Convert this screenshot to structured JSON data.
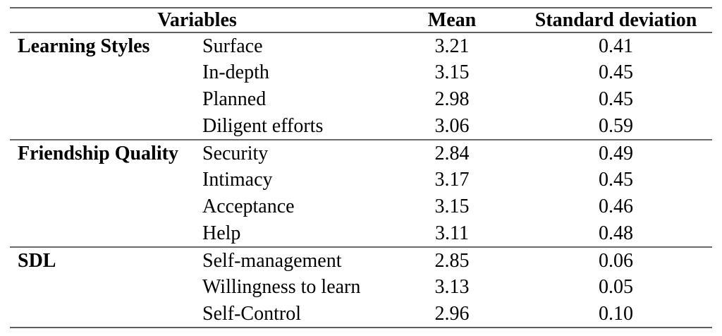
{
  "table": {
    "headers": {
      "variables": "Variables",
      "mean": "Mean",
      "sd": "Standard deviation"
    },
    "groups": [
      {
        "label": "Learning Styles",
        "rows": [
          {
            "variable": "Surface",
            "mean": "3.21",
            "sd": "0.41"
          },
          {
            "variable": "In-depth",
            "mean": "3.15",
            "sd": "0.45"
          },
          {
            "variable": "Planned",
            "mean": "2.98",
            "sd": "0.45"
          },
          {
            "variable": "Diligent efforts",
            "mean": "3.06",
            "sd": "0.59"
          }
        ]
      },
      {
        "label": "Friendship Quality",
        "rows": [
          {
            "variable": "Security",
            "mean": "2.84",
            "sd": "0.49"
          },
          {
            "variable": "Intimacy",
            "mean": "3.17",
            "sd": "0.45"
          },
          {
            "variable": "Acceptance",
            "mean": "3.15",
            "sd": "0.46"
          },
          {
            "variable": "Help",
            "mean": "3.11",
            "sd": "0.48"
          }
        ]
      },
      {
        "label": "SDL",
        "rows": [
          {
            "variable": "Self-management",
            "mean": "2.85",
            "sd": "0.06"
          },
          {
            "variable": "Willingness to learn",
            "mean": "3.13",
            "sd": "0.05"
          },
          {
            "variable": "Self-Control",
            "mean": "2.96",
            "sd": "0.10"
          }
        ]
      }
    ]
  }
}
